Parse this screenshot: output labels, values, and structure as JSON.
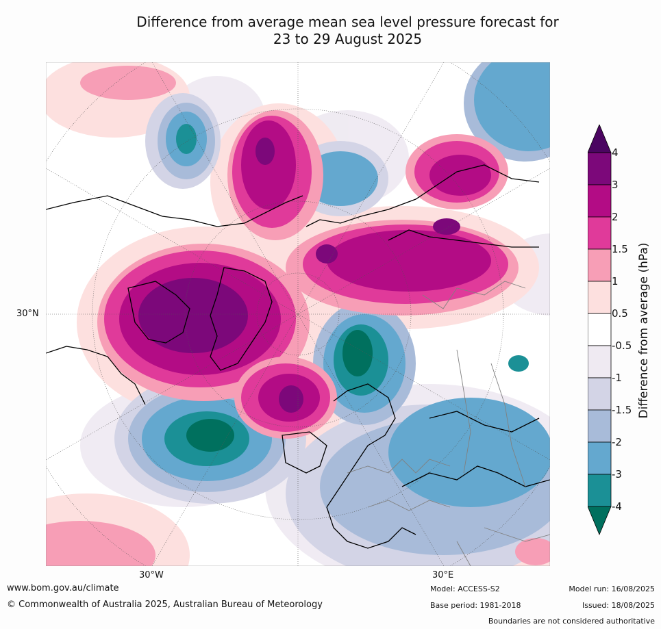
{
  "title": {
    "line1": "Difference from average mean sea level pressure forecast for",
    "line2": "23 to 29 August 2025"
  },
  "graticule_labels": {
    "lat": "30°N",
    "lon_west": "30°W",
    "lon_east": "30°E"
  },
  "colorbar": {
    "title": "Difference from average (hPa)",
    "levels": [
      "4",
      "3",
      "2",
      "1.5",
      "1",
      "0.5",
      "-0.5",
      "-1",
      "-1.5",
      "-2",
      "-3",
      "-4"
    ],
    "colors": {
      "gt4": "#4b0561",
      "3_to_4": "#7c087a",
      "2_to_3": "#b30c85",
      "1.5_to_2": "#e03a9a",
      "1_to_1.5": "#f79eb6",
      "0.5_to_1": "#fde0df",
      "neutral": "#ffffff",
      "m1_to_m0.5": "#efeaf2",
      "m1.5_to_m1": "#d3d4e6",
      "m2_to_m1.5": "#a8bbd9",
      "m3_to_m2": "#64a8cf",
      "m4_to_m3": "#1b9096",
      "lt_m4": "#00705e"
    }
  },
  "footer": {
    "website": "www.bom.gov.au/climate",
    "copyright": "© Commonwealth of Australia 2025, Australian Bureau of Meteorology",
    "model": "Model: ACCESS-S2",
    "base_period": "Base period: 1981-2018",
    "model_run": "Model run: 16/08/2025",
    "issued": "Issued: 18/08/2025",
    "disclaimer": "Boundaries are not considered authoritative"
  }
}
